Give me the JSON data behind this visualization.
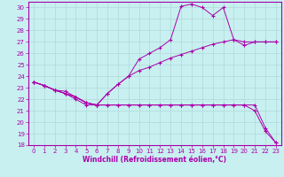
{
  "xlabel": "Windchill (Refroidissement éolien,°C)",
  "background_color": "#c8f0f0",
  "grid_color": "#b0d8d8",
  "line_color": "#aa00aa",
  "xlim": [
    -0.5,
    23.5
  ],
  "ylim": [
    18,
    30.5
  ],
  "yticks": [
    18,
    19,
    20,
    21,
    22,
    23,
    24,
    25,
    26,
    27,
    28,
    29,
    30
  ],
  "xticks": [
    0,
    1,
    2,
    3,
    4,
    5,
    6,
    7,
    8,
    9,
    10,
    11,
    12,
    13,
    14,
    15,
    16,
    17,
    18,
    19,
    20,
    21,
    22,
    23
  ],
  "line1_x": [
    0,
    1,
    2,
    3,
    4,
    5,
    6,
    7,
    8,
    9,
    10,
    11,
    12,
    13,
    14,
    15,
    16,
    17,
    18,
    19,
    20,
    21,
    22,
    23
  ],
  "line1_y": [
    23.5,
    23.2,
    22.8,
    22.7,
    22.2,
    21.7,
    21.5,
    21.5,
    21.5,
    21.5,
    21.5,
    21.5,
    21.5,
    21.5,
    21.5,
    21.5,
    21.5,
    21.5,
    21.5,
    21.5,
    21.5,
    21.5,
    19.5,
    18.2
  ],
  "line2_x": [
    0,
    1,
    2,
    3,
    4,
    5,
    6,
    7,
    8,
    9,
    10,
    11,
    12,
    13,
    14,
    15,
    16,
    17,
    18,
    19,
    20,
    21,
    22,
    23
  ],
  "line2_y": [
    23.5,
    23.2,
    22.8,
    22.5,
    22.2,
    21.7,
    21.5,
    22.5,
    23.3,
    24.0,
    25.5,
    26.0,
    26.5,
    27.2,
    30.1,
    30.3,
    30.0,
    29.3,
    30.0,
    27.2,
    26.7,
    27.0,
    27.0,
    27.0
  ],
  "line3_x": [
    0,
    1,
    2,
    3,
    4,
    5,
    6,
    7,
    8,
    9,
    10,
    11,
    12,
    13,
    14,
    15,
    16,
    17,
    18,
    19,
    20,
    21,
    22,
    23
  ],
  "line3_y": [
    23.5,
    23.2,
    22.8,
    22.5,
    22.2,
    21.7,
    21.5,
    22.5,
    23.3,
    24.0,
    24.5,
    24.8,
    25.2,
    25.6,
    25.9,
    26.2,
    26.5,
    26.8,
    27.0,
    27.2,
    27.0,
    27.0,
    27.0,
    27.0
  ],
  "line4_x": [
    0,
    1,
    2,
    3,
    4,
    5,
    6,
    7,
    8,
    9,
    10,
    11,
    12,
    13,
    14,
    15,
    16,
    17,
    18,
    19,
    20,
    21,
    22,
    23
  ],
  "line4_y": [
    23.5,
    23.2,
    22.8,
    22.5,
    22.0,
    21.5,
    21.5,
    21.5,
    21.5,
    21.5,
    21.5,
    21.5,
    21.5,
    21.5,
    21.5,
    21.5,
    21.5,
    21.5,
    21.5,
    21.5,
    21.5,
    21.0,
    19.2,
    18.2
  ]
}
